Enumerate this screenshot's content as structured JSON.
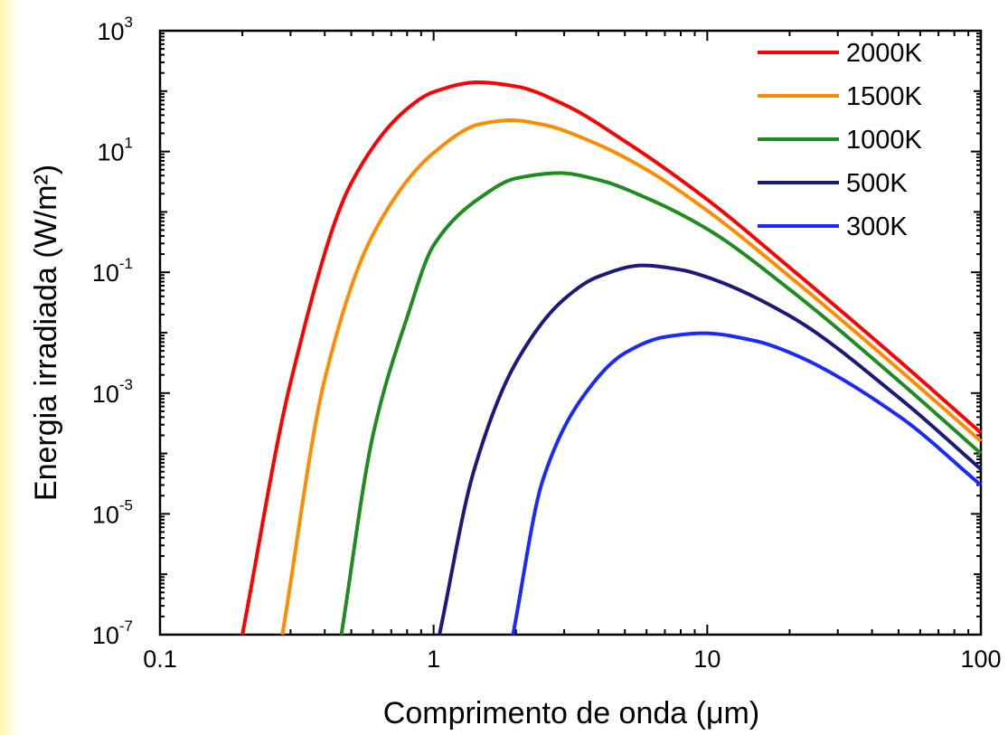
{
  "chart_data": {
    "type": "line",
    "xlabel": "Comprimento de onda (μm)",
    "ylabel": "Energia irradiada (W/m²)",
    "xscale": "log",
    "yscale": "log",
    "xlim": [
      0.1,
      100
    ],
    "ylim": [
      1e-07,
      1000
    ],
    "x_ticks": [
      {
        "value": 0.1,
        "label": "0.1"
      },
      {
        "value": 1,
        "label": "1"
      },
      {
        "value": 10,
        "label": "10"
      },
      {
        "value": 100,
        "label": "100"
      }
    ],
    "y_ticks": [
      {
        "value": 1e-07,
        "base": "10",
        "exp": "-7"
      },
      {
        "value": 1e-05,
        "base": "10",
        "exp": "-5"
      },
      {
        "value": 0.001,
        "base": "10",
        "exp": "-3"
      },
      {
        "value": 0.1,
        "base": "10",
        "exp": "-1"
      },
      {
        "value": 10,
        "base": "10",
        "exp": "1"
      },
      {
        "value": 1000,
        "base": "10",
        "exp": "3"
      }
    ],
    "grid": false,
    "legend_position": "top-right",
    "series": [
      {
        "name": "2000K",
        "color": "#ff0000",
        "x": [
          0.2,
          0.3,
          0.5,
          0.8,
          1.0,
          1.45,
          2.0,
          3.0,
          5.0,
          10.0,
          20.0,
          50.0,
          100.0
        ],
        "y": [
          1e-07,
          0.0015,
          3.0,
          51.0,
          97.0,
          140.0,
          120.0,
          60.0,
          14.8,
          1.6,
          0.12,
          0.0035,
          0.00022
        ]
      },
      {
        "name": "1500K",
        "color": "#ff8c00",
        "x": [
          0.28,
          0.4,
          0.6,
          1.0,
          1.5,
          1.93,
          2.5,
          4.0,
          6.0,
          10.0,
          20.0,
          50.0,
          100.0
        ],
        "y": [
          1e-07,
          0.0017,
          0.42,
          9.5,
          29.0,
          33.0,
          28.0,
          13.0,
          5.0,
          1.05,
          0.085,
          0.0025,
          0.00016
        ]
      },
      {
        "name": "1000K",
        "color": "#1e8c1e",
        "x": [
          0.46,
          0.6,
          0.8,
          1.0,
          1.5,
          2.0,
          2.9,
          4.0,
          6.0,
          10.0,
          20.0,
          50.0,
          100.0
        ],
        "y": [
          1e-07,
          0.0002,
          0.018,
          0.28,
          1.8,
          3.6,
          4.4,
          3.4,
          1.7,
          0.52,
          0.052,
          0.0016,
          0.0001
        ]
      },
      {
        "name": "500K",
        "color": "#1a1a7a",
        "x": [
          1.05,
          1.4,
          2.0,
          3.0,
          4.0,
          5.8,
          8.0,
          10.0,
          20.0,
          50.0,
          100.0
        ],
        "y": [
          1e-07,
          5e-05,
          0.0032,
          0.036,
          0.085,
          0.13,
          0.11,
          0.083,
          0.019,
          0.00085,
          5.5e-05
        ]
      },
      {
        "name": "300K",
        "color": "#1a2aff",
        "x": [
          1.95,
          2.5,
          3.5,
          5.0,
          7.0,
          9.7,
          15.0,
          20.0,
          50.0,
          100.0
        ],
        "y": [
          1e-07,
          3.5e-05,
          0.00085,
          0.0046,
          0.0085,
          0.0098,
          0.0073,
          0.0047,
          0.00042,
          3e-05
        ]
      }
    ]
  }
}
